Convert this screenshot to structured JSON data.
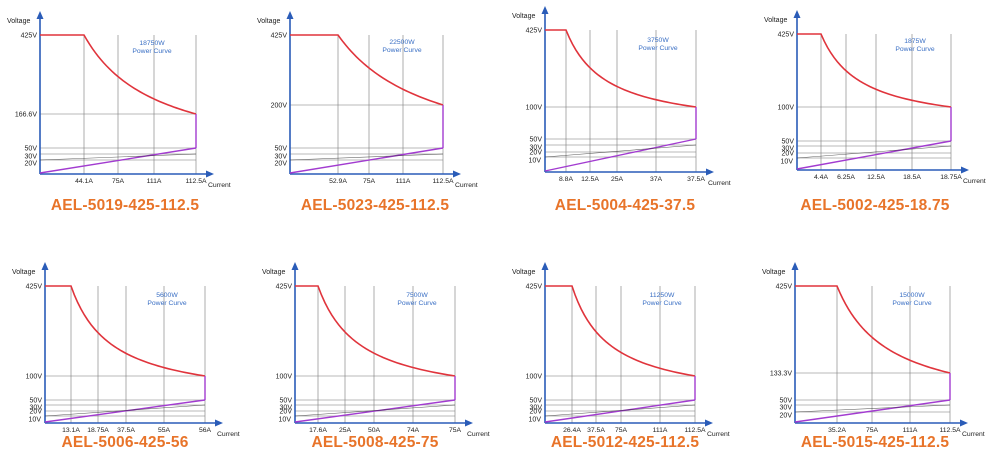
{
  "colors": {
    "power_curve": "#e0343c",
    "load_line": "#a23bd0",
    "axis": "#2a5cb8",
    "grid": "#777777",
    "legend_text": "#3a6fc4",
    "model_label": "#e8742a"
  },
  "chart_data": [
    {
      "type": "line",
      "model": "AEL-5019-425-112.5",
      "power_label": "18750W",
      "curve_label": "Power Curve",
      "ylabel": "Voltage",
      "xlabel": "Current",
      "v_ticks": [
        "425V",
        "166.6V",
        "50V",
        "30V",
        "20V"
      ],
      "i_ticks": [
        "44.1A",
        "75A",
        "111A",
        "112.5A"
      ],
      "x": [
        0,
        44.1,
        60,
        75,
        90,
        100,
        112.5
      ],
      "series": [
        {
          "values": [
            425,
            425,
            312.5,
            250,
            208.3,
            187.5,
            166.6
          ]
        },
        {
          "values": [
            20,
            null,
            null,
            null,
            null,
            null,
            50
          ]
        }
      ]
    },
    {
      "type": "line",
      "model": "AEL-5023-425-112.5",
      "power_label": "22500W",
      "curve_label": "Power Curve",
      "ylabel": "Voltage",
      "xlabel": "Current",
      "v_ticks": [
        "425V",
        "200V",
        "50V",
        "30V",
        "20V"
      ],
      "i_ticks": [
        "52.9A",
        "75A",
        "111A",
        "112.5A"
      ],
      "x": [
        0,
        52.9,
        65,
        75,
        90,
        100,
        112.5
      ],
      "series": [
        {
          "values": [
            425,
            425,
            346,
            300,
            250,
            225,
            200
          ]
        },
        {
          "values": [
            20,
            null,
            null,
            null,
            null,
            null,
            50
          ]
        }
      ]
    },
    {
      "type": "line",
      "model": "AEL-5004-425-37.5",
      "power_label": "3750W",
      "curve_label": "Power Curve",
      "ylabel": "Voltage",
      "xlabel": "Current",
      "v_ticks": [
        "425V",
        "100V",
        "50V",
        "30V",
        "20V",
        "10V"
      ],
      "i_ticks": [
        "8.8A",
        "12.5A",
        "25A",
        "37A",
        "37.5A"
      ],
      "x": [
        0,
        8.8,
        12.5,
        20,
        25,
        30,
        37.5
      ],
      "series": [
        {
          "values": [
            425,
            425,
            300,
            187.5,
            150,
            125,
            100
          ]
        },
        {
          "values": [
            10,
            null,
            null,
            null,
            null,
            null,
            50
          ]
        }
      ]
    },
    {
      "type": "line",
      "model": "AEL-5002-425-18.75",
      "power_label": "1875W",
      "curve_label": "Power Curve",
      "ylabel": "Voltage",
      "xlabel": "Current",
      "v_ticks": [
        "425V",
        "100V",
        "50V",
        "30V",
        "20V",
        "10V"
      ],
      "i_ticks": [
        "4.4A",
        "6.25A",
        "12.5A",
        "18.5A",
        "18.75A"
      ],
      "x": [
        0,
        4.4,
        6.25,
        10,
        12.5,
        15,
        18.75
      ],
      "series": [
        {
          "values": [
            425,
            425,
            300,
            187.5,
            150,
            125,
            100
          ]
        },
        {
          "values": [
            10,
            null,
            null,
            null,
            null,
            null,
            50
          ]
        }
      ]
    },
    {
      "type": "line",
      "model": "AEL-5006-425-56",
      "power_label": "5600W",
      "curve_label": "Power Curve",
      "ylabel": "Voltage",
      "xlabel": "Current",
      "v_ticks": [
        "425V",
        "100V",
        "50V",
        "30V",
        "20V",
        "10V"
      ],
      "i_ticks": [
        "13.1A",
        "18.75A",
        "37.5A",
        "55A",
        "56A"
      ],
      "x": [
        0,
        13.1,
        18.75,
        30,
        37.5,
        45,
        56
      ],
      "series": [
        {
          "values": [
            425,
            425,
            298.7,
            186.7,
            149.3,
            124.4,
            100
          ]
        },
        {
          "values": [
            10,
            null,
            null,
            null,
            null,
            null,
            50
          ]
        }
      ]
    },
    {
      "type": "line",
      "model": "AEL-5008-425-75",
      "power_label": "7500W",
      "curve_label": "Power Curve",
      "ylabel": "Voltage",
      "xlabel": "Current",
      "v_ticks": [
        "425V",
        "100V",
        "50V",
        "30V",
        "20V",
        "10V"
      ],
      "i_ticks": [
        "17.6A",
        "25A",
        "50A",
        "74A",
        "75A"
      ],
      "x": [
        0,
        17.6,
        25,
        40,
        50,
        60,
        75
      ],
      "series": [
        {
          "values": [
            425,
            425,
            300,
            187.5,
            150,
            125,
            100
          ]
        },
        {
          "values": [
            10,
            null,
            null,
            null,
            null,
            null,
            50
          ]
        }
      ]
    },
    {
      "type": "line",
      "model": "AEL-5012-425-112.5",
      "power_label": "11250W",
      "curve_label": "Power Curve",
      "ylabel": "Voltage",
      "xlabel": "Current",
      "v_ticks": [
        "425V",
        "100V",
        "50V",
        "30V",
        "20V",
        "10V"
      ],
      "i_ticks": [
        "26.4A",
        "37.5A",
        "75A",
        "111A",
        "112.5A"
      ],
      "x": [
        0,
        26.4,
        37.5,
        60,
        75,
        90,
        112.5
      ],
      "series": [
        {
          "values": [
            425,
            425,
            300,
            187.5,
            150,
            125,
            100
          ]
        },
        {
          "values": [
            10,
            null,
            null,
            null,
            null,
            null,
            50
          ]
        }
      ]
    },
    {
      "type": "line",
      "model": "AEL-5015-425-112.5",
      "power_label": "15000W",
      "curve_label": "Power Curve",
      "ylabel": "Voltage",
      "xlabel": "Current",
      "v_ticks": [
        "425V",
        "133.3V",
        "50V",
        "30V",
        "20V"
      ],
      "i_ticks": [
        "35.2A",
        "75A",
        "111A",
        "112.5A"
      ],
      "x": [
        0,
        35.2,
        50,
        75,
        90,
        100,
        112.5
      ],
      "series": [
        {
          "values": [
            425,
            425,
            300,
            200,
            166.7,
            150,
            133.3
          ]
        },
        {
          "values": [
            20,
            null,
            null,
            null,
            null,
            null,
            50
          ]
        }
      ]
    }
  ]
}
